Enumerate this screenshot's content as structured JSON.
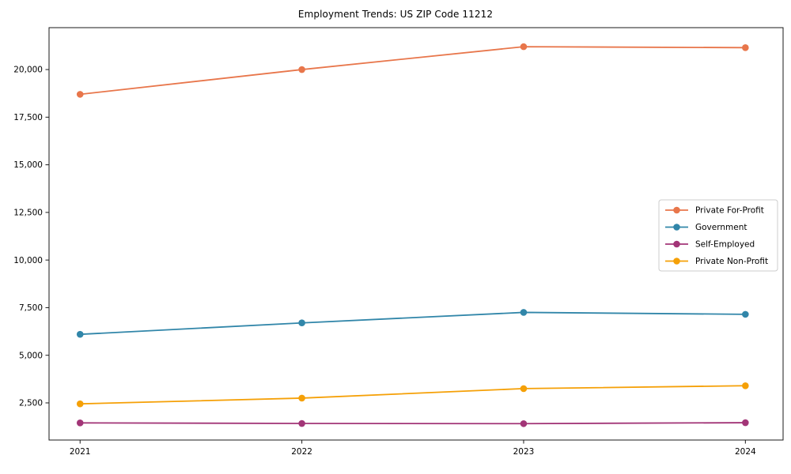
{
  "title": "Employment Trends: US ZIP Code 11212",
  "chart_data": {
    "type": "line",
    "title": "Employment Trends: US ZIP Code 11212",
    "x": [
      2021,
      2022,
      2023,
      2024
    ],
    "x_tick_labels": [
      "2021",
      "2022",
      "2023",
      "2024"
    ],
    "series": [
      {
        "name": "Private For-Profit",
        "color": "#e8764b",
        "values": [
          18700,
          20000,
          21200,
          21150
        ]
      },
      {
        "name": "Government",
        "color": "#3186a9",
        "values": [
          6100,
          6700,
          7250,
          7150
        ]
      },
      {
        "name": "Self-Employed",
        "color": "#a23577",
        "values": [
          1450,
          1420,
          1410,
          1460
        ]
      },
      {
        "name": "Private Non-Profit",
        "color": "#f5a007",
        "values": [
          2450,
          2750,
          3250,
          3400
        ]
      }
    ],
    "yticks": [
      2500,
      5000,
      7500,
      10000,
      12500,
      15000,
      17500,
      20000
    ],
    "ytick_labels": [
      "2,500",
      "5,000",
      "7,500",
      "10,000",
      "12,500",
      "15,000",
      "17,500",
      "20,000"
    ],
    "ylim": [
      550,
      22200
    ],
    "xlim": [
      2020.86,
      2024.17
    ],
    "xlabel": "",
    "ylabel": "",
    "grid": false,
    "legend_position": "center right",
    "legend_entries": [
      "Private For-Profit",
      "Government",
      "Self-Employed",
      "Private Non-Profit"
    ],
    "axis_color": "#1a1a1a",
    "legend_border_color": "#cccccc",
    "marker": "circle",
    "marker_radius": 4.3,
    "line_width": 1.8
  }
}
